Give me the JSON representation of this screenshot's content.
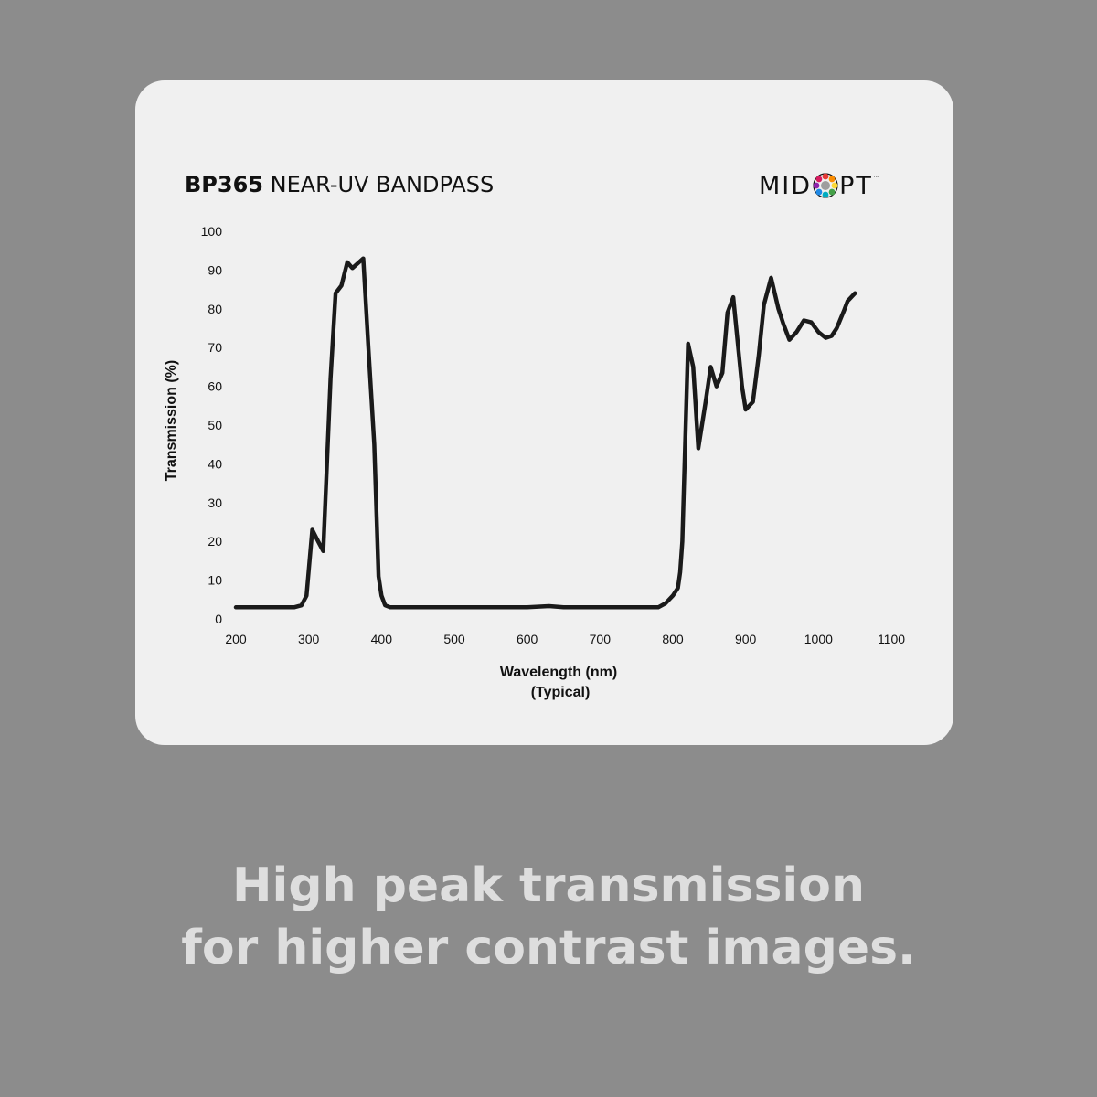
{
  "chart_data": {
    "type": "line",
    "title_code": "BP365",
    "title_name": "NEAR-UV BANDPASS",
    "xlabel": "Wavelength (nm)",
    "xlabel_sub": "(Typical)",
    "ylabel": "Transmission (%)",
    "xlim": [
      200,
      1100
    ],
    "ylim": [
      0,
      100
    ],
    "xticks": [
      200,
      300,
      400,
      500,
      600,
      700,
      800,
      900,
      1000,
      1100
    ],
    "yticks": [
      0,
      10,
      20,
      30,
      40,
      50,
      60,
      70,
      80,
      90,
      100
    ],
    "grid": false,
    "series": [
      {
        "color": "#1a1a1a",
        "points": [
          [
            200,
            3
          ],
          [
            280,
            3
          ],
          [
            290,
            3.5
          ],
          [
            297,
            6
          ],
          [
            305,
            23
          ],
          [
            313,
            20
          ],
          [
            320,
            17.5
          ],
          [
            330,
            62
          ],
          [
            337,
            84
          ],
          [
            345,
            86
          ],
          [
            353,
            92
          ],
          [
            360,
            90.5
          ],
          [
            375,
            93
          ],
          [
            382,
            70
          ],
          [
            390,
            45
          ],
          [
            396,
            11
          ],
          [
            400,
            6
          ],
          [
            405,
            3.5
          ],
          [
            412,
            3
          ],
          [
            500,
            3
          ],
          [
            600,
            3
          ],
          [
            630,
            3.3
          ],
          [
            650,
            3
          ],
          [
            700,
            3
          ],
          [
            780,
            3
          ],
          [
            790,
            4
          ],
          [
            800,
            6
          ],
          [
            807,
            8
          ],
          [
            810,
            12
          ],
          [
            813,
            20
          ],
          [
            817,
            45
          ],
          [
            821,
            71
          ],
          [
            828,
            65
          ],
          [
            835,
            44
          ],
          [
            845,
            56
          ],
          [
            852,
            65
          ],
          [
            860,
            60
          ],
          [
            868,
            63.5
          ],
          [
            875,
            79
          ],
          [
            883,
            83
          ],
          [
            895,
            60
          ],
          [
            900,
            54
          ],
          [
            910,
            56
          ],
          [
            918,
            68
          ],
          [
            925,
            81
          ],
          [
            935,
            88
          ],
          [
            945,
            80
          ],
          [
            952,
            76
          ],
          [
            960,
            72
          ],
          [
            970,
            74
          ],
          [
            980,
            77
          ],
          [
            990,
            76.5
          ],
          [
            1000,
            74
          ],
          [
            1010,
            72.5
          ],
          [
            1018,
            73
          ],
          [
            1025,
            75
          ],
          [
            1035,
            79.5
          ],
          [
            1040,
            82
          ],
          [
            1045,
            83
          ],
          [
            1050,
            84
          ]
        ]
      }
    ]
  },
  "logo": {
    "left_text": "MID",
    "right_text": "PT",
    "tm": "™",
    "wheel_colors": [
      "#e53935",
      "#fb8c00",
      "#fdd835",
      "#43a047",
      "#00acc1",
      "#1e88e5",
      "#8e24aa",
      "#d81b60"
    ],
    "wheel_center": "#9e9e9e"
  },
  "tagline": {
    "line1": "High peak transmission",
    "line2": "for higher contrast images."
  }
}
